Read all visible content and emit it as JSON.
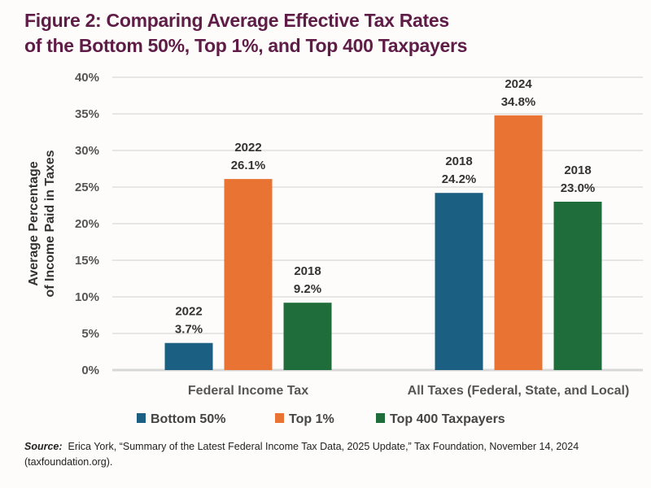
{
  "title_line1": "Figure 2: Comparing Average Effective Tax Rates",
  "title_line2": "of the Bottom 50%, Top 1%, and Top 400 Taxpayers",
  "source_label": "Source:",
  "source_text": "Erica York, “Summary of the Latest Federal Income Tax Data, 2025 Update,” Tax Foundation, November 14, 2024 (taxfoundation.org).",
  "chart_data": {
    "type": "bar",
    "title": "Figure 2: Comparing Average Effective Tax Rates of the Bottom 50%, Top 1%, and Top 400 Taxpayers",
    "ylabel": [
      "Average Percentage",
      "of Income Paid in Taxes"
    ],
    "xlabel": "",
    "ylim": [
      0,
      40
    ],
    "yticks": [
      "0%",
      "5%",
      "10%",
      "15%",
      "20%",
      "25%",
      "30%",
      "35%",
      "40%"
    ],
    "grid": true,
    "legend_placement": "bottom",
    "categories": [
      "Federal Income Tax",
      "All Taxes (Federal, State, and Local)"
    ],
    "series": [
      {
        "name": "Bottom 50%",
        "color": "#1b5f83",
        "values": [
          3.7,
          24.2
        ],
        "labels": [
          "3.7%",
          "24.2%"
        ],
        "years": [
          "2022",
          "2018"
        ]
      },
      {
        "name": "Top 1%",
        "color": "#e97332",
        "values": [
          26.1,
          34.8
        ],
        "labels": [
          "26.1%",
          "34.8%"
        ],
        "years": [
          "2022",
          "2024"
        ]
      },
      {
        "name": "Top 400 Taxpayers",
        "color": "#1e6d3b",
        "values": [
          9.2,
          23.0
        ],
        "labels": [
          "9.2%",
          "23.0%"
        ],
        "years": [
          "2018",
          "2018"
        ]
      }
    ]
  }
}
